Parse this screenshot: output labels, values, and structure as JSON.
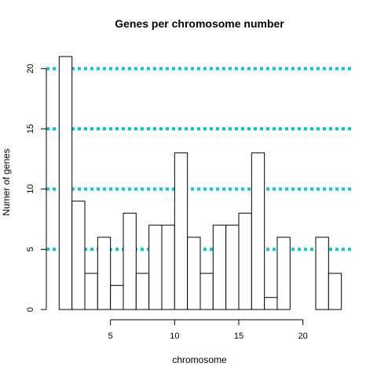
{
  "chart_data": {
    "type": "bar",
    "title": "Genes per chromosome number",
    "xlabel": "chromosome",
    "ylabel": "Numer of genes",
    "bins": [
      {
        "from": 1,
        "to": 2,
        "count": 21
      },
      {
        "from": 2,
        "to": 3,
        "count": 9
      },
      {
        "from": 3,
        "to": 4,
        "count": 3
      },
      {
        "from": 4,
        "to": 5,
        "count": 6
      },
      {
        "from": 5,
        "to": 6,
        "count": 2
      },
      {
        "from": 6,
        "to": 7,
        "count": 8
      },
      {
        "from": 7,
        "to": 8,
        "count": 3
      },
      {
        "from": 8,
        "to": 9,
        "count": 7
      },
      {
        "from": 9,
        "to": 10,
        "count": 7
      },
      {
        "from": 10,
        "to": 11,
        "count": 13
      },
      {
        "from": 11,
        "to": 12,
        "count": 6
      },
      {
        "from": 12,
        "to": 13,
        "count": 3
      },
      {
        "from": 13,
        "to": 14,
        "count": 7
      },
      {
        "from": 14,
        "to": 15,
        "count": 7
      },
      {
        "from": 15,
        "to": 16,
        "count": 8
      },
      {
        "from": 16,
        "to": 17,
        "count": 13
      },
      {
        "from": 17,
        "to": 18,
        "count": 1
      },
      {
        "from": 18,
        "to": 19,
        "count": 6
      },
      {
        "from": 19,
        "to": 20,
        "count": 0
      },
      {
        "from": 20,
        "to": 21,
        "count": 0
      },
      {
        "from": 21,
        "to": 22,
        "count": 6
      },
      {
        "from": 22,
        "to": 23,
        "count": 3
      }
    ],
    "xlim": [
      0,
      24
    ],
    "ylim": [
      0,
      21
    ],
    "x_ticks": [
      "5",
      "10",
      "15",
      "20"
    ],
    "y_ticks": [
      "0",
      "5",
      "10",
      "15",
      "20"
    ],
    "reference_lines": [
      5,
      10,
      15,
      20
    ],
    "reference_line_color": "#00CDCD",
    "bar_fill": "#FFFFFF",
    "bar_stroke": "#000000",
    "grid": false,
    "legend": "none"
  }
}
